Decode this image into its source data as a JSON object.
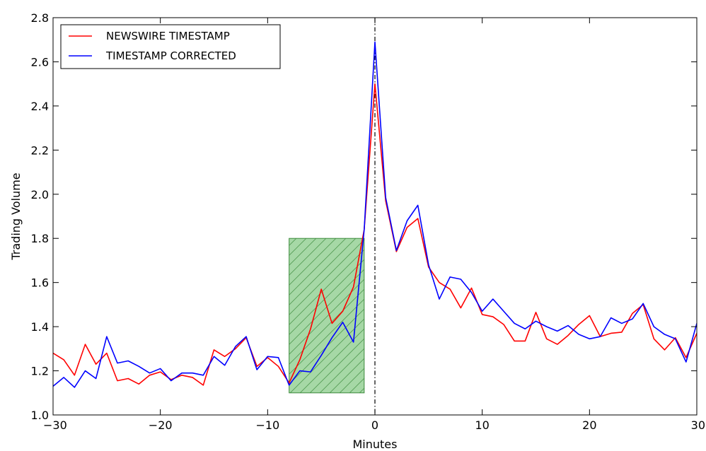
{
  "chart_data": {
    "type": "line",
    "title": "",
    "xlabel": "Minutes",
    "ylabel": "Trading Volume",
    "xlim": [
      -30,
      30
    ],
    "ylim": [
      1.0,
      2.8
    ],
    "xticks": [
      -30,
      -20,
      -10,
      0,
      10,
      20,
      30
    ],
    "yticks": [
      1.0,
      1.2,
      1.4,
      1.6,
      1.8,
      2.0,
      2.2,
      2.4,
      2.6,
      2.8
    ],
    "grid": false,
    "legend_position": "top-left",
    "vline": {
      "x": 0,
      "style": "dash-dot",
      "color": "#000000"
    },
    "shaded_region": {
      "x": [
        -8,
        -1
      ],
      "y": [
        1.1,
        1.8
      ],
      "color": "#5cb85c",
      "hatch": "diagonal"
    },
    "x": [
      -30,
      -29,
      -28,
      -27,
      -26,
      -25,
      -24,
      -23,
      -22,
      -21,
      -20,
      -19,
      -18,
      -17,
      -16,
      -15,
      -14,
      -13,
      -12,
      -11,
      -10,
      -9,
      -8,
      -7,
      -6,
      -5,
      -4,
      -3,
      -2,
      -1,
      0,
      1,
      2,
      3,
      4,
      5,
      6,
      7,
      8,
      9,
      10,
      11,
      12,
      13,
      14,
      15,
      16,
      17,
      18,
      19,
      20,
      21,
      22,
      23,
      24,
      25,
      26,
      27,
      28,
      29,
      30
    ],
    "series": [
      {
        "name": "NEWSWIRE TIMESTAMP",
        "color": "#ff0000",
        "values": [
          1.28,
          1.25,
          1.18,
          1.32,
          1.23,
          1.28,
          1.155,
          1.165,
          1.14,
          1.18,
          1.195,
          1.16,
          1.18,
          1.17,
          1.135,
          1.295,
          1.265,
          1.3,
          1.35,
          1.22,
          1.26,
          1.22,
          1.145,
          1.25,
          1.39,
          1.57,
          1.415,
          1.47,
          1.58,
          1.84,
          2.5,
          1.97,
          1.74,
          1.85,
          1.89,
          1.67,
          1.6,
          1.57,
          1.485,
          1.575,
          1.455,
          1.445,
          1.41,
          1.335,
          1.335,
          1.465,
          1.345,
          1.32,
          1.36,
          1.41,
          1.45,
          1.355,
          1.37,
          1.375,
          1.46,
          1.5,
          1.345,
          1.295,
          1.35,
          1.26,
          1.37
        ]
      },
      {
        "name": "TIMESTAMP CORRECTED",
        "color": "#0000ff",
        "values": [
          1.13,
          1.17,
          1.125,
          1.2,
          1.165,
          1.355,
          1.235,
          1.245,
          1.22,
          1.19,
          1.21,
          1.155,
          1.19,
          1.19,
          1.18,
          1.265,
          1.225,
          1.31,
          1.355,
          1.205,
          1.265,
          1.26,
          1.135,
          1.2,
          1.195,
          1.27,
          1.35,
          1.42,
          1.33,
          1.84,
          2.69,
          1.985,
          1.745,
          1.88,
          1.95,
          1.68,
          1.525,
          1.625,
          1.615,
          1.555,
          1.47,
          1.525,
          1.47,
          1.415,
          1.39,
          1.425,
          1.4,
          1.38,
          1.405,
          1.365,
          1.345,
          1.355,
          1.44,
          1.415,
          1.435,
          1.505,
          1.4,
          1.365,
          1.345,
          1.24,
          1.415
        ]
      }
    ]
  }
}
